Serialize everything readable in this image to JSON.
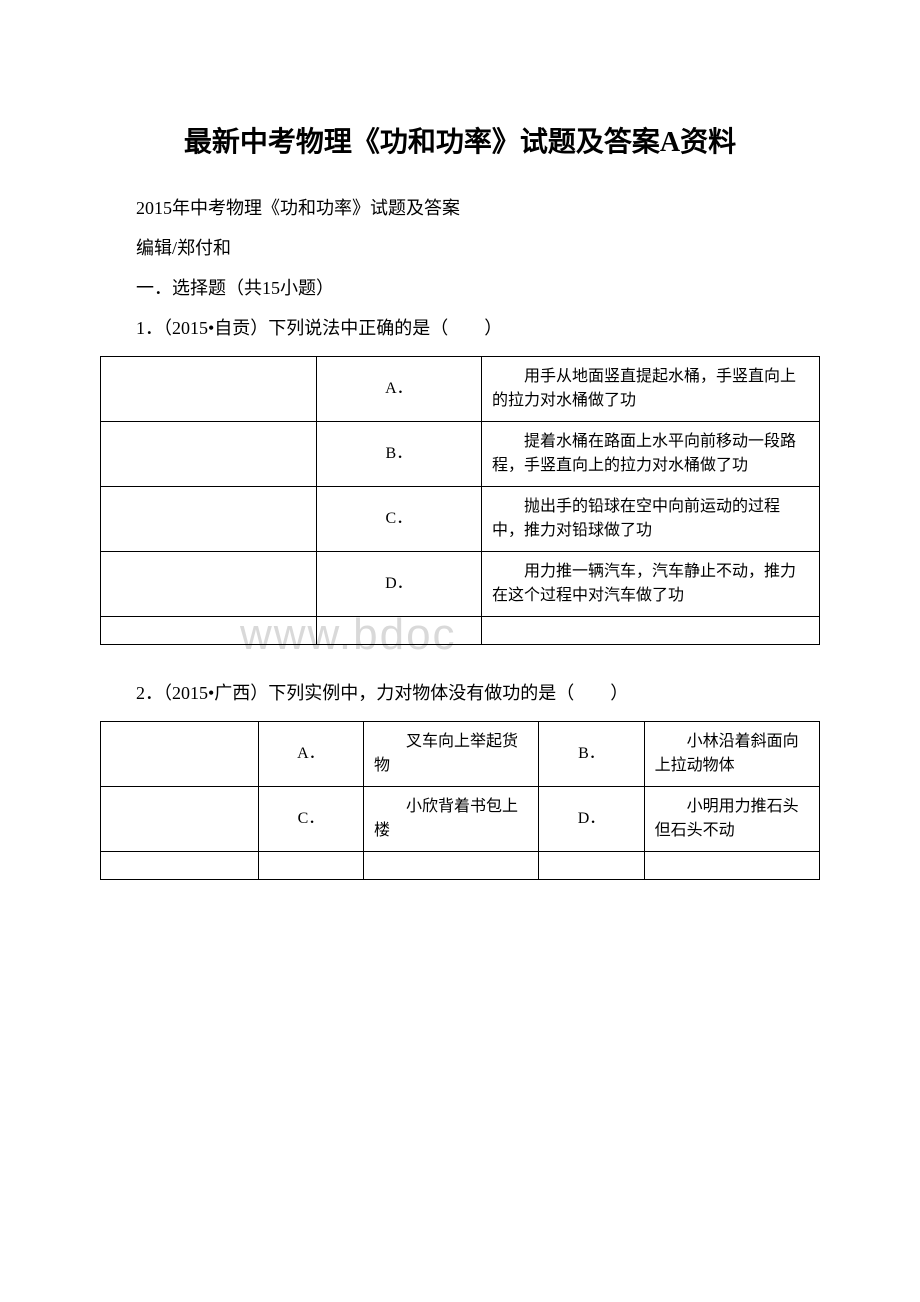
{
  "title": "最新中考物理《功和功率》试题及答案A资料",
  "subtitle": "2015年中考物理《功和功率》试题及答案",
  "editor": "编辑/郑付和",
  "section": "一．选择题（共15小题）",
  "watermark": "www.bdoc",
  "q1": {
    "stem": "1．（2015•自贡）下列说法中正确的是（　　）",
    "options": {
      "A": {
        "label": "A．",
        "text": "　　用手从地面竖直提起水桶，手竖直向上的拉力对水桶做了功"
      },
      "B": {
        "label": "B．",
        "text": "　　提着水桶在路面上水平向前移动一段路程，手竖直向上的拉力对水桶做了功"
      },
      "C": {
        "label": "C．",
        "text": "　　抛出手的铅球在空中向前运动的过程中，推力对铅球做了功"
      },
      "D": {
        "label": "D．",
        "text": "　　用力推一辆汽车，汽车静止不动，推力在这个过程中对汽车做了功"
      }
    }
  },
  "q2": {
    "stem": "2．（2015•广西）下列实例中，力对物体没有做功的是（　　）",
    "options": {
      "A": {
        "label": "A．",
        "text": "　　叉车向上举起货物"
      },
      "B": {
        "label": "B．",
        "text": "　　小林沿着斜面向上拉动物体"
      },
      "C": {
        "label": "C．",
        "text": "　　小欣背着书包上楼"
      },
      "D": {
        "label": "D．",
        "text": "　　小明用力推石头但石头不动"
      }
    }
  },
  "colors": {
    "text": "#000000",
    "border": "#000000",
    "background": "#ffffff",
    "watermark": "#d9d9d9"
  },
  "fonts": {
    "title_size": 28,
    "body_size": 18,
    "table_size": 16,
    "watermark_size": 44
  }
}
